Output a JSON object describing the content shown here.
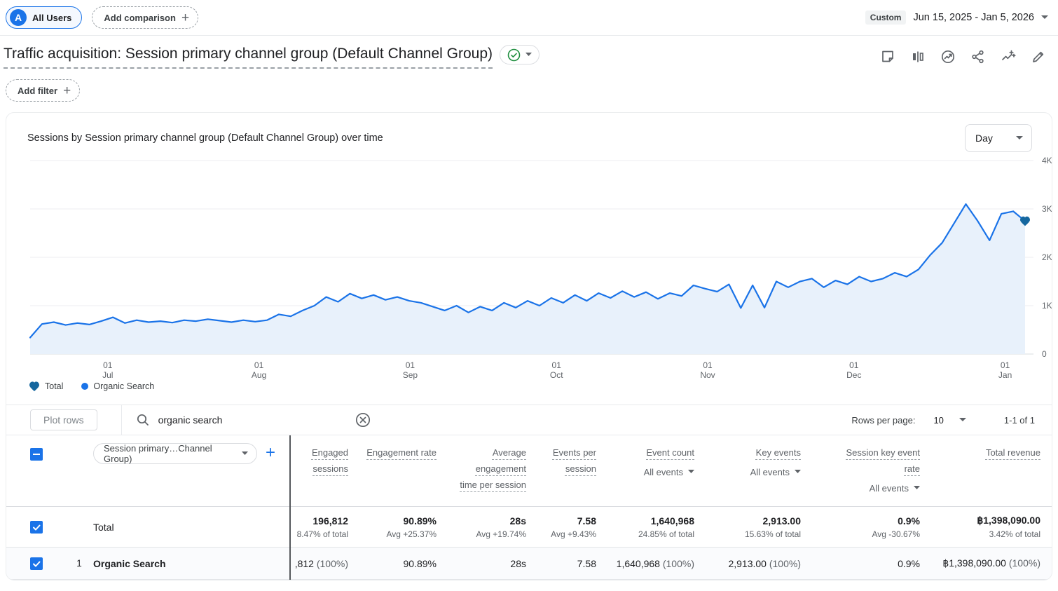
{
  "top_bar": {
    "audience_chip": {
      "avatar": "A",
      "label": "All Users"
    },
    "add_comparison": {
      "label": "Add comparison",
      "plus": "+"
    },
    "date_range": {
      "badge": "Custom",
      "value": "Jun 15, 2025 - Jan 5, 2026"
    }
  },
  "report_header": {
    "title": "Traffic acquisition: Session primary channel group (Default Channel Group)"
  },
  "filter_bar": {
    "label": "Add filter",
    "plus": "+"
  },
  "chart": {
    "title": "Sessions by Session primary channel group (Default Channel Group) over time",
    "granularity": "Day",
    "legend": [
      {
        "label": "Total"
      },
      {
        "label": "Organic Search"
      }
    ],
    "colors": {
      "line": "#1a73e8",
      "fill": "#e8f1fb",
      "marker": "#15679f",
      "grid": "#eceef1",
      "baseline": "#dadce0"
    },
    "chart_data": {
      "type": "area",
      "title": "Sessions by Session primary channel group (Default Channel Group) over time",
      "xlabel": "Date (Jun 15, 2025 - Jan 5, 2026)",
      "ylabel": "Sessions",
      "ylim": [
        0,
        4000
      ],
      "grid": true,
      "legend_position": "bottom",
      "y_ticks": [
        {
          "label": "4K",
          "value": 4000
        },
        {
          "label": "3K",
          "value": 3000
        },
        {
          "label": "2K",
          "value": 2000
        },
        {
          "label": "1K",
          "value": 1000
        },
        {
          "label": "0",
          "value": 0
        }
      ],
      "x_ticks": [
        {
          "day": "01",
          "month": "Jul",
          "f": 0.078
        },
        {
          "day": "01",
          "month": "Aug",
          "f": 0.23
        },
        {
          "day": "01",
          "month": "Sep",
          "f": 0.382
        },
        {
          "day": "01",
          "month": "Oct",
          "f": 0.529
        },
        {
          "day": "01",
          "month": "Nov",
          "f": 0.681
        },
        {
          "day": "01",
          "month": "Dec",
          "f": 0.828
        },
        {
          "day": "01",
          "month": "Jan",
          "f": 0.98
        }
      ],
      "series": [
        {
          "name": "Organic Search",
          "values": [
            340,
            620,
            660,
            600,
            640,
            610,
            680,
            760,
            640,
            700,
            660,
            680,
            650,
            700,
            680,
            720,
            690,
            660,
            700,
            670,
            700,
            820,
            780,
            900,
            1000,
            1180,
            1080,
            1250,
            1150,
            1220,
            1120,
            1180,
            1100,
            1060,
            980,
            900,
            1000,
            860,
            980,
            900,
            1060,
            960,
            1100,
            1000,
            1160,
            1060,
            1220,
            1100,
            1260,
            1160,
            1300,
            1180,
            1280,
            1140,
            1260,
            1200,
            1420,
            1350,
            1290,
            1440,
            950,
            1420,
            960,
            1500,
            1380,
            1500,
            1560,
            1380,
            1520,
            1440,
            1600,
            1500,
            1560,
            1680,
            1600,
            1750,
            2050,
            2300,
            2700,
            3100,
            2750,
            2350,
            2900,
            2950,
            2750
          ]
        }
      ]
    }
  },
  "table": {
    "toolbar": {
      "plot_rows": "Plot rows",
      "search_value": "organic search"
    },
    "pagination": {
      "rows_per_page_label": "Rows per page:",
      "rows_per_page_value": "10",
      "range": "1-1 of 1"
    },
    "dimension_selector": "Session primary…Channel Group)",
    "columns": [
      {
        "title": "Engaged sessions"
      },
      {
        "title": "Engagement rate"
      },
      {
        "title": "Average engagement time per session"
      },
      {
        "title": "Events per session"
      },
      {
        "title": "Event count",
        "filter": "All events"
      },
      {
        "title": "Key events",
        "filter": "All events"
      },
      {
        "title": "Session key event rate",
        "filter": "All events"
      },
      {
        "title": "Total revenue"
      }
    ],
    "total_row": {
      "label": "Total",
      "cells": [
        {
          "value": "196,812",
          "sub": "8.47% of total"
        },
        {
          "value": "90.89%",
          "sub": "Avg +25.37%"
        },
        {
          "value": "28s",
          "sub": "Avg +19.74%"
        },
        {
          "value": "7.58",
          "sub": "Avg +9.43%"
        },
        {
          "value": "1,640,968",
          "sub": "24.85% of total"
        },
        {
          "value": "2,913.00",
          "sub": "15.63% of total"
        },
        {
          "value": "0.9%",
          "sub": "Avg -30.67%"
        },
        {
          "value": "฿1,398,090.00",
          "sub": "3.42% of total"
        }
      ]
    },
    "rows": [
      {
        "index": "1",
        "name": "Organic Search",
        "cells": [
          {
            "value": ",812",
            "pct": " (100%)"
          },
          {
            "value": "90.89%",
            "pct": ""
          },
          {
            "value": "28s",
            "pct": ""
          },
          {
            "value": "7.58",
            "pct": ""
          },
          {
            "value": "1,640,968",
            "pct": " (100%)"
          },
          {
            "value": "2,913.00",
            "pct": " (100%)"
          },
          {
            "value": "0.9%",
            "pct": ""
          },
          {
            "value": "฿1,398,090.00",
            "pct": " (100%)"
          }
        ]
      }
    ]
  }
}
